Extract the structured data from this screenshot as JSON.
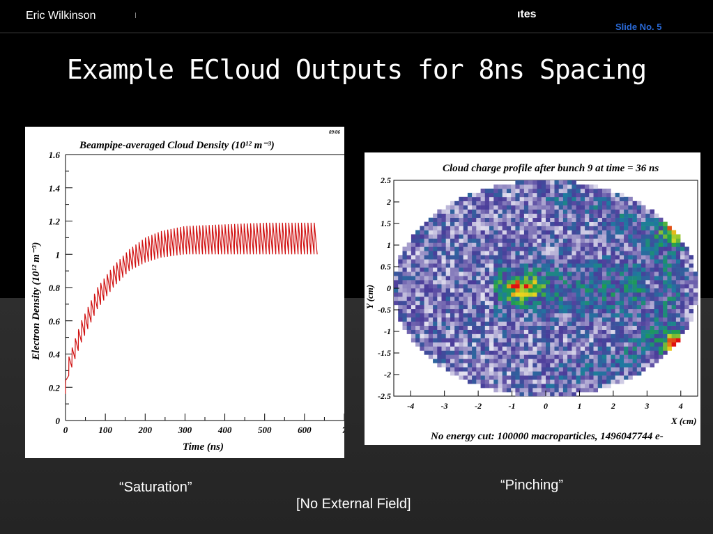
{
  "header": {
    "author": "Eric Wilkinson",
    "title_fragment": "ıtes",
    "slide_number": "Slide No.  5"
  },
  "slide": {
    "title": "Example ECloud Outputs for 8ns Spacing",
    "caption_left": "“Saturation”",
    "caption_right": "“Pinching”",
    "caption_center": "[No External Field]"
  },
  "chart_data": [
    {
      "type": "line",
      "title": "Beampipe-averaged Cloud Density (10¹² m⁻³)",
      "corner_note": "09/06",
      "xlabel": "Time (ns)",
      "ylabel": "Electron Density (10¹² m⁻³)",
      "xlim": [
        0,
        700
      ],
      "ylim": [
        0,
        1.6
      ],
      "x_ticks": [
        "0",
        "100",
        "200",
        "300",
        "400",
        "500",
        "600",
        "7"
      ],
      "y_ticks": [
        "0",
        "0.2",
        "0.4",
        "0.6",
        "0.8",
        "1",
        "1.2",
        "1.4",
        "1.6"
      ],
      "series_color": "#d01010",
      "bunch_spacing_ns": 8,
      "num_bunches": 79,
      "envelope": {
        "time_ns": [
          0,
          8,
          40,
          80,
          120,
          160,
          200,
          240,
          300,
          400,
          500,
          620
        ],
        "peak": [
          0.23,
          0.38,
          0.6,
          0.8,
          0.93,
          1.03,
          1.1,
          1.14,
          1.17,
          1.18,
          1.19,
          1.19
        ],
        "trough": [
          0.16,
          0.27,
          0.47,
          0.67,
          0.8,
          0.9,
          0.95,
          0.98,
          1.0,
          1.0,
          1.0,
          1.0
        ]
      }
    },
    {
      "type": "heatmap",
      "title": "Cloud charge profile after bunch 9 at time = 36 ns",
      "xlabel": "X (cm)",
      "ylabel": "Y (cm)",
      "footer": "No energy cut: 100000 macroparticles, 1496047744 e-",
      "xlim": [
        -4.5,
        4.5
      ],
      "ylim": [
        -2.5,
        2.5
      ],
      "x_ticks": [
        "-4",
        "-3",
        "-2",
        "-1",
        "0",
        "1",
        "2",
        "3",
        "4"
      ],
      "y_ticks": [
        "2.5",
        "2",
        "1.5",
        "1",
        "0.5",
        "0",
        "-0.5",
        "-1",
        "-1.5",
        "-2",
        "-2.5"
      ],
      "colors": {
        "low": "#ffffff",
        "mid_low": "#4b3c9a",
        "mid": "#1e7aa0",
        "mid_high": "#1ea04a",
        "high": "#e8e020",
        "max": "#e01010"
      },
      "hotspots": [
        {
          "x": 3.9,
          "y": 1.3,
          "level": 1.0
        },
        {
          "x": 3.9,
          "y": -1.3,
          "level": 1.0
        },
        {
          "x": -0.7,
          "y": 0.0,
          "level": 0.75
        }
      ]
    }
  ]
}
